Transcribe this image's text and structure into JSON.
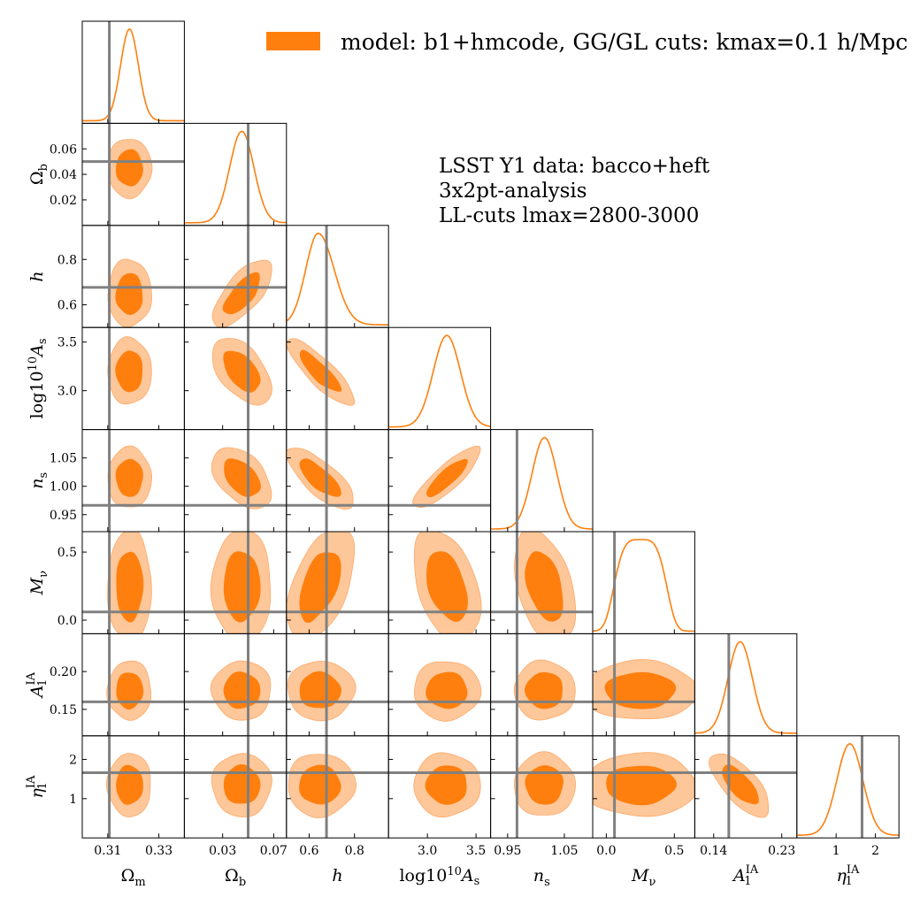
{
  "chart_data": {
    "type": "corner",
    "legend": {
      "label": "model: b1+hmcode, GG/GL cuts: kmax=0.1 h/Mpc",
      "color": "#ff7f0e",
      "placement": "top-right"
    },
    "annotation_lines": [
      "LSST Y1 data: bacco+heft",
      "3x2pt-analysis",
      "LL-cuts lmax=2800-3000"
    ],
    "colors": {
      "inner": "#ff7f0e",
      "outer": "#fdc799",
      "outer_edge": "#ffa868",
      "truth": "#808080",
      "curve": "#ff7f0e"
    },
    "parameters": [
      {
        "id": "Om",
        "label_main": "Ω",
        "label_sub": "m",
        "label_sup": "",
        "italic": false,
        "range": [
          0.3,
          0.34
        ],
        "ticks": [
          0.31,
          0.33
        ],
        "tick_labels": [
          "0.31",
          "0.33"
        ],
        "mean": 0.3185,
        "sigma": 0.0035,
        "truth": 0.3106,
        "skew": 0
      },
      {
        "id": "Ob",
        "label_main": "Ω",
        "label_sub": "b",
        "label_sup": "",
        "italic": false,
        "range": [
          0.0,
          0.08
        ],
        "ticks": [
          0.02,
          0.04,
          0.06
        ],
        "tick_labels": [
          "0.02",
          "0.04",
          "0.06"
        ],
        "x_ticks": [
          0.03,
          0.07
        ],
        "x_tick_labels": [
          "0.03",
          "0.07"
        ],
        "mean": 0.045,
        "sigma": 0.0095,
        "truth": 0.05,
        "skew": 0
      },
      {
        "id": "h",
        "label_main": "h",
        "label_sub": "",
        "label_sup": "",
        "italic": true,
        "range": [
          0.5,
          0.95
        ],
        "ticks": [
          0.6,
          0.8
        ],
        "tick_labels": [
          "0.6",
          "0.8"
        ],
        "mean": 0.64,
        "sigma": 0.055,
        "truth": 0.6766,
        "skew": 0.8
      },
      {
        "id": "As",
        "label_main": "log10",
        "label_sub": "s",
        "label_sup": "10",
        "italic": false,
        "range": [
          2.6,
          3.65
        ],
        "ticks": [
          3.0,
          3.5
        ],
        "tick_labels": [
          "3.0",
          "3.5"
        ],
        "mean": 3.2,
        "sigma": 0.14,
        "truth": null,
        "skew": 0
      },
      {
        "id": "ns",
        "label_main": "n",
        "label_sub": "s",
        "label_sup": "",
        "italic": true,
        "range": [
          0.92,
          1.1
        ],
        "ticks": [
          0.95,
          1.0,
          1.05
        ],
        "tick_labels": [
          "0.95",
          "1.00",
          "1.05"
        ],
        "x_ticks": [
          0.95,
          1.05
        ],
        "x_tick_labels": [
          "0.95",
          "1.05"
        ],
        "mean": 1.015,
        "sigma": 0.022,
        "truth": 0.9665,
        "skew": 0
      },
      {
        "id": "Mnu",
        "label_main": "M",
        "label_sub": "ν",
        "label_sup": "",
        "italic": true,
        "range": [
          -0.1,
          0.65
        ],
        "ticks": [
          0.0,
          0.5
        ],
        "tick_labels": [
          "0.0",
          "0.5"
        ],
        "mean": 0.25,
        "sigma": 0.17,
        "truth": 0.06,
        "skew": 0
      },
      {
        "id": "A1",
        "label_main": "A",
        "label_sub": "1",
        "label_sup": "IA",
        "italic": true,
        "range": [
          0.115,
          0.25
        ],
        "ticks": [
          0.15,
          0.2
        ],
        "tick_labels": [
          "0.15",
          "0.20"
        ],
        "x_ticks": [
          0.14,
          0.23
        ],
        "x_tick_labels": [
          "0.14",
          "0.23"
        ],
        "mean": 0.175,
        "sigma": 0.016,
        "truth": 0.16,
        "skew": 0
      },
      {
        "id": "eta1",
        "label_main": "η",
        "label_sub": "1",
        "label_sup": "IA",
        "italic": true,
        "range": [
          0.0,
          2.6
        ],
        "ticks": [
          1,
          2
        ],
        "tick_labels": [
          "1",
          "2"
        ],
        "mean": 1.35,
        "sigma": 0.33,
        "truth": 1.66,
        "skew": 0
      }
    ],
    "correlations": [
      [
        1,
        0,
        0,
        0,
        0,
        0,
        0,
        0
      ],
      [
        0,
        1,
        0.7,
        -0.5,
        -0.45,
        0,
        0,
        0
      ],
      [
        0,
        0.7,
        1,
        -0.85,
        -0.75,
        0.5,
        0,
        0
      ],
      [
        0,
        -0.5,
        -0.85,
        1,
        0.85,
        -0.4,
        0,
        0
      ],
      [
        0,
        -0.45,
        -0.75,
        0.85,
        1,
        -0.4,
        0,
        0
      ],
      [
        0,
        0,
        0.5,
        -0.4,
        -0.4,
        1,
        0,
        0
      ],
      [
        0,
        0,
        0,
        0,
        0,
        0,
        1,
        -0.7
      ],
      [
        0,
        0,
        0,
        0,
        0,
        0,
        -0.7,
        1
      ]
    ]
  }
}
